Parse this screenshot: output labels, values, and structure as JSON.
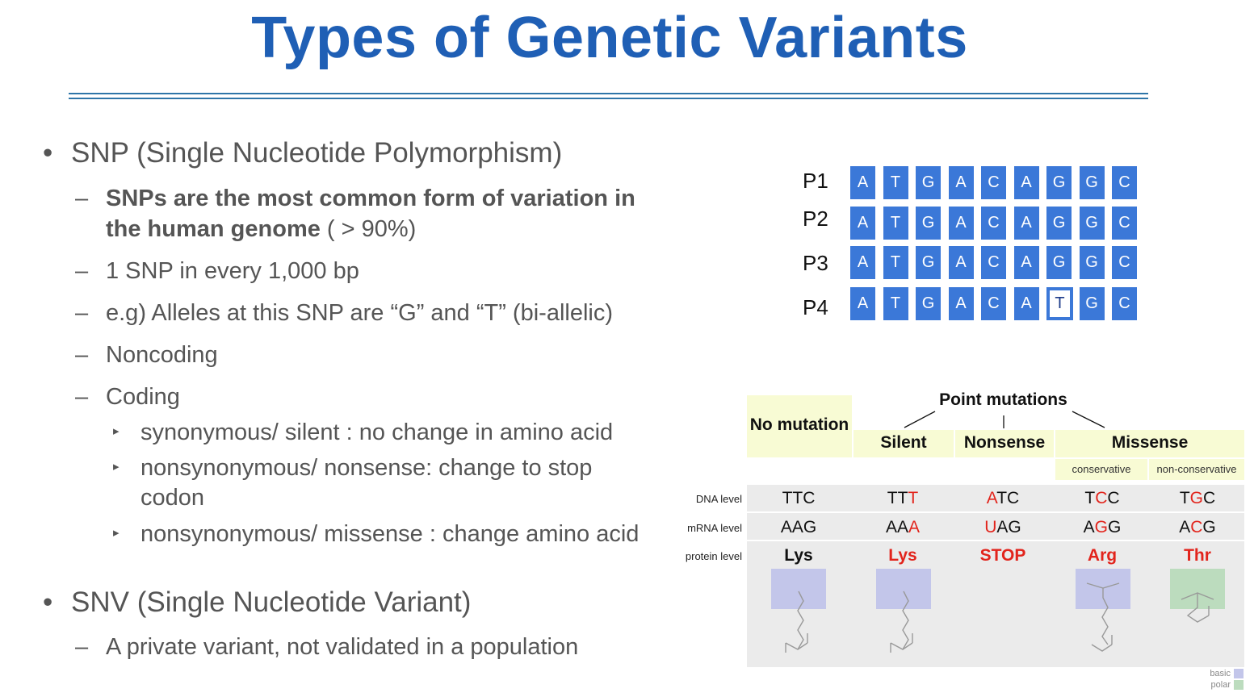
{
  "title": "Types of Genetic Variants",
  "bullets": {
    "snp": {
      "abbr": "SNP",
      "full": "(Single Nucleotide Polymorphism)",
      "sub": [
        {
          "bold1": "SNPs are the most common form of variation in",
          "bold2": "the human genome",
          "rest": "( > 90%)"
        },
        {
          "text": "1 SNP in every 1,000 bp"
        },
        {
          "text": "e.g) Alleles at this SNP are “G” and “T” (bi-allelic)"
        },
        {
          "text": "Noncoding"
        },
        {
          "text": "Coding"
        }
      ],
      "coding": [
        "synonymous/ silent : no change in amino acid",
        "nonsynonymous/ nonsense: change to stop",
        "codon",
        "nonsynonymous/ missense : change amino acid"
      ]
    },
    "snv": {
      "abbr": "SNV",
      "full": "(Single Nucleotide Variant)",
      "sub": "A private variant, not validated in a population"
    }
  },
  "sequences": [
    {
      "label": "P1",
      "bases": [
        "A",
        "T",
        "G",
        "A",
        "C",
        "A",
        "G",
        "G",
        "C"
      ]
    },
    {
      "label": "P2",
      "bases": [
        "A",
        "T",
        "G",
        "A",
        "C",
        "A",
        "G",
        "G",
        "C"
      ]
    },
    {
      "label": "P3",
      "bases": [
        "A",
        "T",
        "G",
        "A",
        "C",
        "A",
        "G",
        "G",
        "C"
      ]
    },
    {
      "label": "P4",
      "bases": [
        "A",
        "T",
        "G",
        "A",
        "C",
        "A",
        "T",
        "G",
        "C"
      ],
      "highlight_index": 6
    }
  ],
  "mutation_table": {
    "point_mutations": "Point mutations",
    "no_mutation": "No mutation",
    "silent": "Silent",
    "nonsense": "Nonsense",
    "missense": "Missense",
    "conservative": "conservative",
    "non_conservative": "non-conservative",
    "levels": [
      "DNA level",
      "mRNA level",
      "protein level"
    ],
    "columns": [
      {
        "dna": "TTC",
        "mrna": "AAG",
        "protein": "Lys"
      },
      {
        "dna": "TTT",
        "mrna": "AAA",
        "protein": "Lys"
      },
      {
        "dna": "ATC",
        "mrna": "UAG",
        "protein": "STOP"
      },
      {
        "dna": "TCC",
        "mrna": "AGG",
        "protein": "Arg"
      },
      {
        "dna": "TGC",
        "mrna": "ACG",
        "protein": "Thr"
      }
    ],
    "legend": [
      "basic",
      "polar"
    ],
    "colors": {
      "header_bg": "#f8fbd4",
      "table_bg": "#ebebeb",
      "basic": "#c3c6ea",
      "polar": "#bcdcbe",
      "mutated": "#e2241c"
    }
  }
}
